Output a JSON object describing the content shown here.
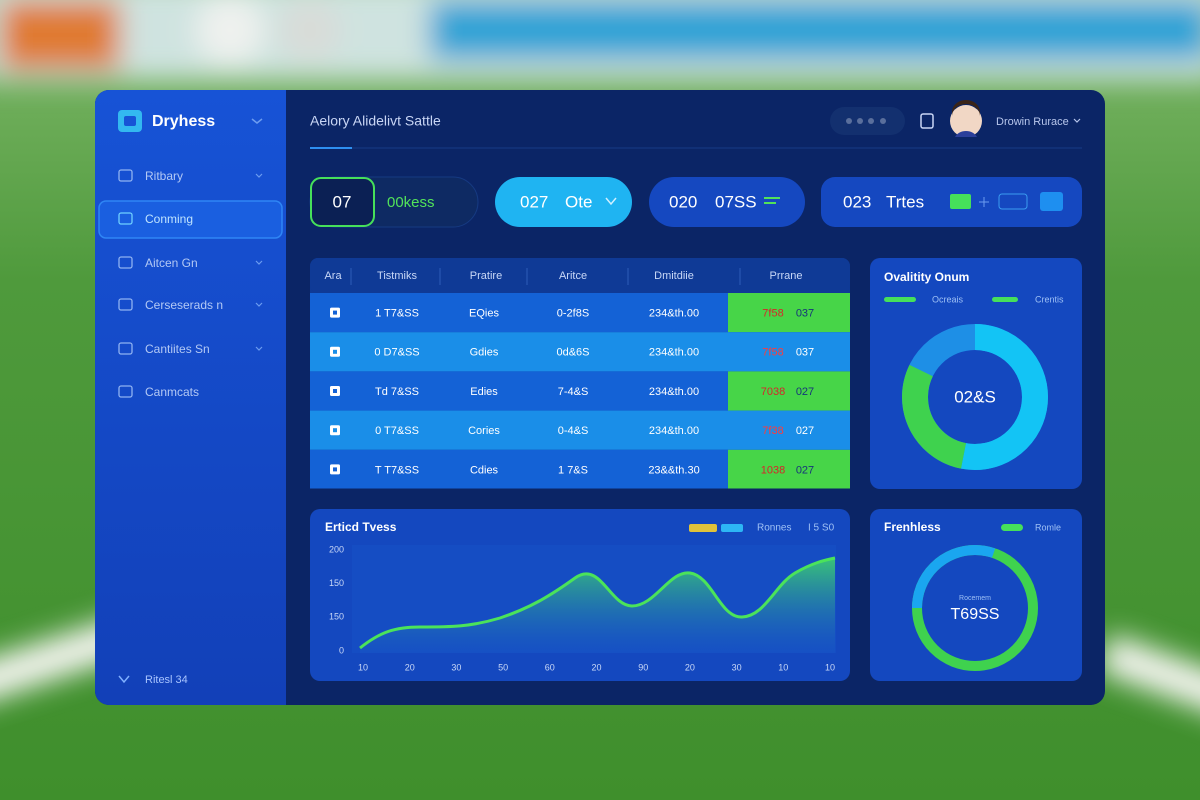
{
  "header": {
    "brand": "Dryhess",
    "title": "Aelory Alidelivt Sattle",
    "user": "Drowin Rurace"
  },
  "sidebar": {
    "items": [
      "Ritbary",
      "Conming",
      "Aitcen Gn",
      "Cerseserads n",
      "Cantiites Sn",
      "Canmcats"
    ],
    "footer": "Ritesl 34"
  },
  "stats": [
    {
      "value": "07",
      "label": "00kess"
    },
    {
      "value": "027",
      "label": "Ote"
    },
    {
      "value": "020",
      "label": "07SS"
    },
    {
      "value": "023",
      "label": "Trtes"
    }
  ],
  "table": {
    "columns": [
      "Ara",
      "Tistmiks",
      "Pratire",
      "Aritce",
      "Dmitdiie",
      "Prrane"
    ],
    "rows": [
      [
        "1 T7&SS",
        "EQies",
        "0-2f8S",
        "234&th.00",
        "7f58",
        "037"
      ],
      [
        "0 D7&SS",
        "Gdies",
        "0d&6S",
        "234&th.00",
        "7f58",
        "037"
      ],
      [
        "Td 7&SS",
        "Edies",
        "7-4&S",
        "234&th.00",
        "7038",
        "027"
      ],
      [
        "0 T7&SS",
        "Cories",
        "0-4&S",
        "234&th.00",
        "7f38",
        "027"
      ],
      [
        "T T7&SS",
        "Cdies",
        "1 7&S",
        "23&&th.30",
        "1038",
        "027"
      ]
    ]
  },
  "donut_panel": {
    "title": "Ovalitity Onum",
    "legend": [
      "Ocreais",
      "Crentis"
    ],
    "center": "02&S"
  },
  "trend_panel": {
    "title": "Erticd Tvess",
    "legend": [
      "Ronnes",
      "I 5 S0"
    ],
    "y_labels": [
      "200",
      "150",
      "150",
      "0"
    ],
    "x_labels": [
      "10",
      "20",
      "30",
      "50",
      "60",
      "20",
      "90",
      "20",
      "30",
      "10",
      "10"
    ]
  },
  "ring_panel": {
    "title": "Frenhless",
    "legend": "Romle",
    "caption": "Rocemem",
    "center": "T69SS"
  }
}
